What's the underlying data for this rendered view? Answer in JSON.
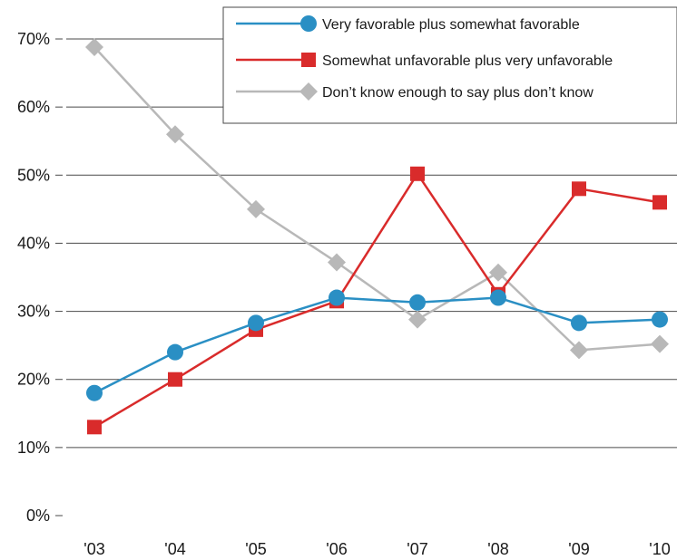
{
  "chart_data": {
    "type": "line",
    "categories": [
      "'03",
      "'04",
      "'05",
      "'06",
      "'07",
      "'08",
      "'09",
      "'10"
    ],
    "y_ticks": [
      "0%",
      "10%",
      "20%",
      "30%",
      "40%",
      "50%",
      "60%",
      "70%"
    ],
    "ylim": [
      0,
      70
    ],
    "grid": true,
    "legend_position": "top-right",
    "series": [
      {
        "name": "Very favorable plus somewhat favorable",
        "color": "#2a8fc4",
        "marker": "circle",
        "values": [
          18,
          24,
          28.3,
          32,
          31.3,
          32,
          28.3,
          28.8
        ]
      },
      {
        "name": "Somewhat unfavorable plus very unfavorable",
        "color": "#d92b2b",
        "marker": "square",
        "values": [
          13,
          20,
          27.3,
          31.5,
          50.2,
          32.5,
          48,
          46
        ]
      },
      {
        "name": "Don’t know enough to say plus don’t know",
        "color": "#b8b8b8",
        "marker": "diamond",
        "values": [
          68.8,
          56,
          45,
          37.2,
          28.8,
          35.7,
          24.3,
          25.2
        ]
      }
    ]
  }
}
